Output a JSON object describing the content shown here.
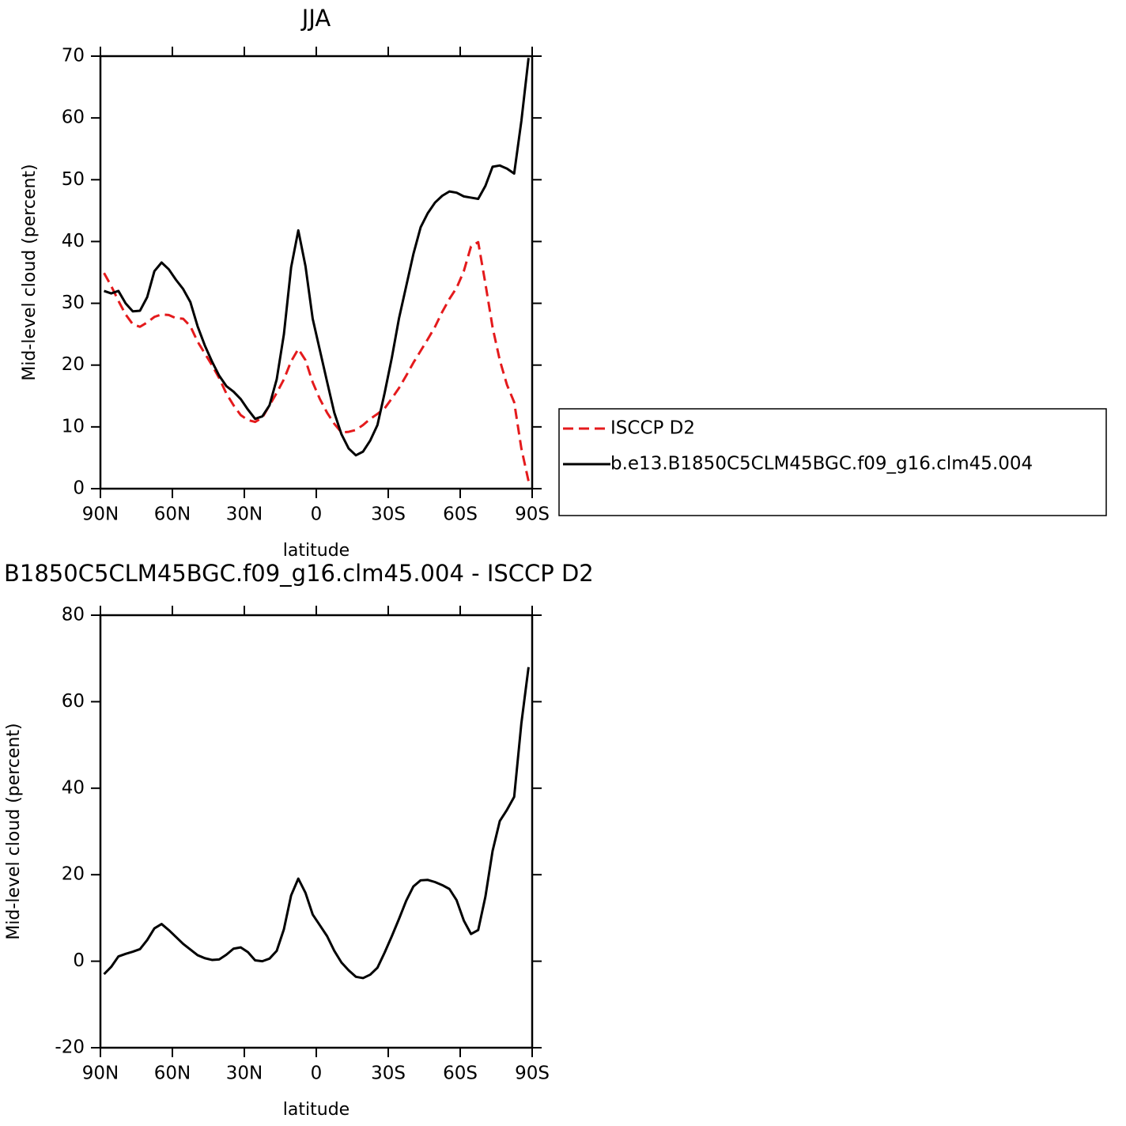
{
  "chart_data": [
    {
      "type": "line",
      "title": "JJA",
      "x_label": "latitude",
      "y_label": "Mid-level cloud (percent)",
      "x": [
        88.5,
        85.5,
        82.5,
        79.5,
        76.5,
        73.5,
        70.5,
        67.5,
        64.5,
        61.5,
        58.5,
        55.5,
        52.5,
        49.5,
        46.5,
        43.5,
        40.5,
        37.5,
        34.5,
        31.5,
        28.5,
        25.5,
        22.5,
        19.5,
        16.5,
        13.5,
        10.5,
        7.5,
        4.5,
        1.5,
        -1.5,
        -4.5,
        -7.5,
        -10.5,
        -13.5,
        -16.5,
        -19.5,
        -22.5,
        -25.5,
        -28.5,
        -31.5,
        -34.5,
        -37.5,
        -40.5,
        -43.5,
        -46.5,
        -49.5,
        -52.5,
        -55.5,
        -58.5,
        -61.5,
        -64.5,
        -67.5,
        -70.5,
        -73.5,
        -76.5,
        -79.5,
        -82.5,
        -85.5,
        -88.5
      ],
      "xlim": [
        90,
        -90
      ],
      "xticks": [
        {
          "value": 90,
          "label": "90N"
        },
        {
          "value": 60,
          "label": "60N"
        },
        {
          "value": 30,
          "label": "30N"
        },
        0,
        {
          "value": -30,
          "label": "30S"
        },
        {
          "value": -60,
          "label": "60S"
        },
        {
          "value": -90,
          "label": "90S"
        }
      ],
      "ylim": [
        0,
        70
      ],
      "yticks": [
        0,
        10,
        20,
        30,
        40,
        50,
        60,
        70
      ],
      "legend": "right",
      "series": [
        {
          "name": "ISCCP D2",
          "color": "#e41a1c",
          "linestyle": "dashed",
          "values": [
            34.9,
            32.8,
            30.4,
            28.2,
            26.6,
            26.2,
            26.9,
            27.8,
            28.2,
            28.1,
            27.6,
            27.5,
            26.3,
            23.8,
            21.9,
            20.0,
            17.9,
            15.4,
            13.5,
            11.9,
            11.1,
            10.8,
            11.5,
            13.5,
            15.5,
            17.7,
            20.6,
            22.6,
            20.8,
            17.2,
            14.5,
            12.3,
            10.5,
            9.1,
            9.2,
            9.5,
            10.3,
            11.3,
            12.1,
            13.0,
            14.6,
            16.3,
            18.3,
            20.4,
            22.3,
            24.2,
            26.2,
            28.6,
            30.7,
            32.5,
            35.2,
            39.2,
            39.9,
            33.2,
            26.1,
            20.8,
            16.8,
            14.0,
            6.5,
            1.2
          ]
        },
        {
          "name": "b.e13.B1850C5CLM45BGC.f09_g16.clm45.004",
          "color": "#000000",
          "linestyle": "solid",
          "values": [
            32.0,
            31.6,
            32.0,
            30.0,
            28.7,
            28.8,
            31.0,
            35.2,
            36.6,
            35.5,
            33.8,
            32.3,
            30.2,
            26.3,
            23.2,
            20.6,
            18.3,
            16.6,
            15.7,
            14.5,
            12.8,
            11.3,
            11.7,
            13.5,
            17.7,
            25.0,
            35.8,
            41.8,
            36.0,
            27.5,
            22.4,
            17.3,
            12.3,
            8.8,
            6.5,
            5.4,
            6.0,
            7.8,
            10.3,
            15.5,
            21.2,
            27.6,
            32.8,
            38.0,
            42.3,
            44.6,
            46.3,
            47.4,
            48.1,
            47.9,
            47.3,
            47.1,
            46.9,
            49.0,
            52.1,
            52.3,
            51.8,
            51.0,
            59.5,
            69.7
          ]
        }
      ]
    },
    {
      "type": "line",
      "title": "B1850C5CLM45BGC.f09_g16.clm45.004 - ISCCP D2",
      "x_label": "latitude",
      "y_label": "Mid-level cloud (percent)",
      "x": [
        88.5,
        85.5,
        82.5,
        79.5,
        76.5,
        73.5,
        70.5,
        67.5,
        64.5,
        61.5,
        58.5,
        55.5,
        52.5,
        49.5,
        46.5,
        43.5,
        40.5,
        37.5,
        34.5,
        31.5,
        28.5,
        25.5,
        22.5,
        19.5,
        16.5,
        13.5,
        10.5,
        7.5,
        4.5,
        1.5,
        -1.5,
        -4.5,
        -7.5,
        -10.5,
        -13.5,
        -16.5,
        -19.5,
        -22.5,
        -25.5,
        -28.5,
        -31.5,
        -34.5,
        -37.5,
        -40.5,
        -43.5,
        -46.5,
        -49.5,
        -52.5,
        -55.5,
        -58.5,
        -61.5,
        -64.5,
        -67.5,
        -70.5,
        -73.5,
        -76.5,
        -79.5,
        -82.5,
        -85.5,
        -88.5
      ],
      "xlim": [
        90,
        -90
      ],
      "xticks": [
        {
          "value": 90,
          "label": "90N"
        },
        {
          "value": 60,
          "label": "60N"
        },
        {
          "value": 30,
          "label": "30N"
        },
        0,
        {
          "value": -30,
          "label": "30S"
        },
        {
          "value": -60,
          "label": "60S"
        },
        {
          "value": -90,
          "label": "90S"
        }
      ],
      "ylim": [
        -20,
        80
      ],
      "yticks": [
        -20,
        0,
        20,
        40,
        60,
        80
      ],
      "series": [
        {
          "color": "#000000",
          "linestyle": "solid",
          "values": [
            -3.0,
            -1.3,
            1.1,
            1.7,
            2.2,
            2.8,
            4.9,
            7.6,
            8.6,
            7.2,
            5.6,
            4.0,
            2.7,
            1.4,
            0.7,
            0.3,
            0.4,
            1.5,
            2.9,
            3.2,
            2.1,
            0.2,
            0.0,
            0.6,
            2.4,
            7.4,
            15.2,
            19.1,
            15.8,
            10.8,
            8.3,
            5.8,
            2.4,
            -0.3,
            -2.1,
            -3.6,
            -3.9,
            -3.1,
            -1.5,
            2.0,
            5.8,
            9.8,
            14.0,
            17.3,
            18.7,
            18.8,
            18.3,
            17.6,
            16.7,
            14.1,
            9.4,
            6.3,
            7.2,
            14.9,
            25.5,
            32.4,
            35.0,
            38.0,
            55.0,
            68.0
          ]
        }
      ]
    }
  ]
}
